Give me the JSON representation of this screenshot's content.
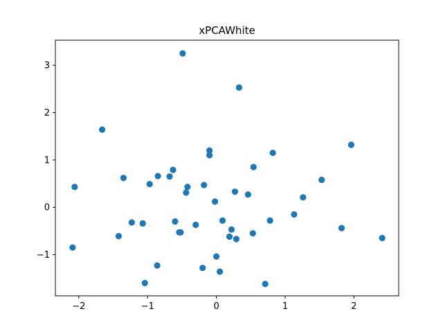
{
  "chart_data": {
    "type": "scatter",
    "title": "xPCAWhite",
    "xlabel": "",
    "ylabel": "",
    "xlim": [
      -2.34,
      2.65
    ],
    "ylim": [
      -1.87,
      3.53
    ],
    "xticks": [
      -2,
      -1,
      0,
      1,
      2
    ],
    "yticks": [
      -1,
      0,
      1,
      2,
      3
    ],
    "xtick_labels": [
      "−2",
      "−1",
      "0",
      "1",
      "2"
    ],
    "ytick_labels": [
      "−1",
      "0",
      "1",
      "2",
      "3"
    ],
    "grid": false,
    "legend": "none",
    "marker_color": "#1f77b4",
    "points": [
      {
        "x": -0.49,
        "y": 3.25
      },
      {
        "x": 0.33,
        "y": 2.53
      },
      {
        "x": -1.66,
        "y": 1.64
      },
      {
        "x": 1.96,
        "y": 1.32
      },
      {
        "x": -0.1,
        "y": 1.2
      },
      {
        "x": -0.1,
        "y": 1.1
      },
      {
        "x": 0.82,
        "y": 1.15
      },
      {
        "x": 0.54,
        "y": 0.85
      },
      {
        "x": -0.63,
        "y": 0.79
      },
      {
        "x": -0.85,
        "y": 0.66
      },
      {
        "x": -0.68,
        "y": 0.65
      },
      {
        "x": -1.35,
        "y": 0.62
      },
      {
        "x": 1.53,
        "y": 0.58
      },
      {
        "x": -0.97,
        "y": 0.49
      },
      {
        "x": -0.18,
        "y": 0.47
      },
      {
        "x": -2.06,
        "y": 0.43
      },
      {
        "x": -0.42,
        "y": 0.43
      },
      {
        "x": 0.27,
        "y": 0.33
      },
      {
        "x": -0.44,
        "y": 0.31
      },
      {
        "x": 0.46,
        "y": 0.27
      },
      {
        "x": 1.26,
        "y": 0.21
      },
      {
        "x": -0.02,
        "y": 0.12
      },
      {
        "x": 1.13,
        "y": -0.15
      },
      {
        "x": 0.78,
        "y": -0.28
      },
      {
        "x": 0.09,
        "y": -0.28
      },
      {
        "x": -0.6,
        "y": -0.3
      },
      {
        "x": -1.23,
        "y": -0.32
      },
      {
        "x": -1.07,
        "y": -0.34
      },
      {
        "x": -0.3,
        "y": -0.37
      },
      {
        "x": 1.82,
        "y": -0.44
      },
      {
        "x": 0.22,
        "y": -0.47
      },
      {
        "x": -0.54,
        "y": -0.53
      },
      {
        "x": -0.52,
        "y": -0.53
      },
      {
        "x": 0.53,
        "y": -0.55
      },
      {
        "x": -1.42,
        "y": -0.61
      },
      {
        "x": 0.19,
        "y": -0.62
      },
      {
        "x": 2.41,
        "y": -0.65
      },
      {
        "x": 0.29,
        "y": -0.67
      },
      {
        "x": -2.09,
        "y": -0.85
      },
      {
        "x": 0.0,
        "y": -1.04
      },
      {
        "x": -0.86,
        "y": -1.23
      },
      {
        "x": -0.2,
        "y": -1.28
      },
      {
        "x": 0.05,
        "y": -1.36
      },
      {
        "x": -1.04,
        "y": -1.6
      },
      {
        "x": 0.71,
        "y": -1.62
      }
    ]
  }
}
